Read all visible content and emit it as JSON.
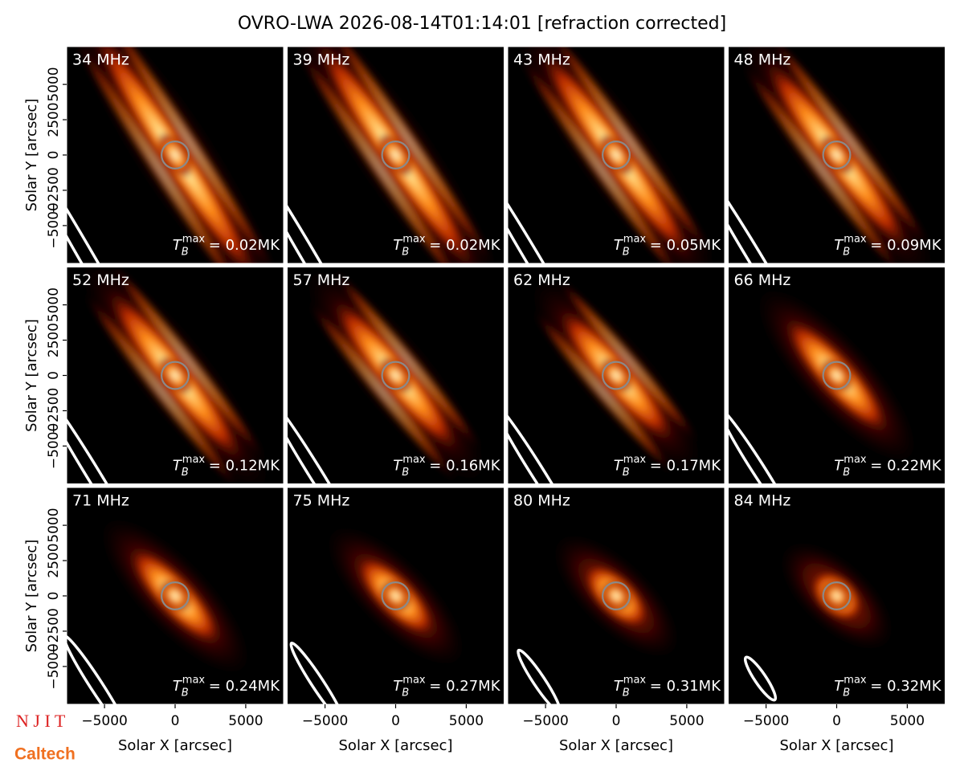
{
  "chart_data": {
    "type": "heatmap",
    "title": "OVRO-LWA 2026-08-14T01:14:01 [refraction corrected]",
    "xlabel": "Solar X [arcsec]",
    "ylabel": "Solar Y [arcsec]",
    "xlim": [
      -7680,
      7680
    ],
    "ylim": [
      -7680,
      7680
    ],
    "xticks": [
      {
        "value": -5000,
        "label": "−5000"
      },
      0,
      5000
    ],
    "yticks": [
      {
        "value": -5000,
        "label": "−5000"
      },
      {
        "value": -2500,
        "label": "−2500"
      },
      0,
      2500,
      5000
    ],
    "tb_symbol": "T",
    "tb_subscript": "B",
    "tb_superscript": "max",
    "panels": [
      {
        "label": "34 MHz",
        "tb": "= 0.02MK"
      },
      {
        "label": "39 MHz",
        "tb": "= 0.02MK"
      },
      {
        "label": "43 MHz",
        "tb": "= 0.05MK"
      },
      {
        "label": "48 MHz",
        "tb": "= 0.09MK"
      },
      {
        "label": "52 MHz",
        "tb": "= 0.12MK"
      },
      {
        "label": "57 MHz",
        "tb": "= 0.16MK"
      },
      {
        "label": "62 MHz",
        "tb": "= 0.17MK"
      },
      {
        "label": "66 MHz",
        "tb": "= 0.22MK"
      },
      {
        "label": "71 MHz",
        "tb": "= 0.24MK"
      },
      {
        "label": "75 MHz",
        "tb": "= 0.27MK"
      },
      {
        "label": "80 MHz",
        "tb": "= 0.31MK"
      },
      {
        "label": "84 MHz",
        "tb": "= 0.32MK"
      }
    ],
    "logos": [
      "N J I T",
      "Caltech"
    ]
  }
}
